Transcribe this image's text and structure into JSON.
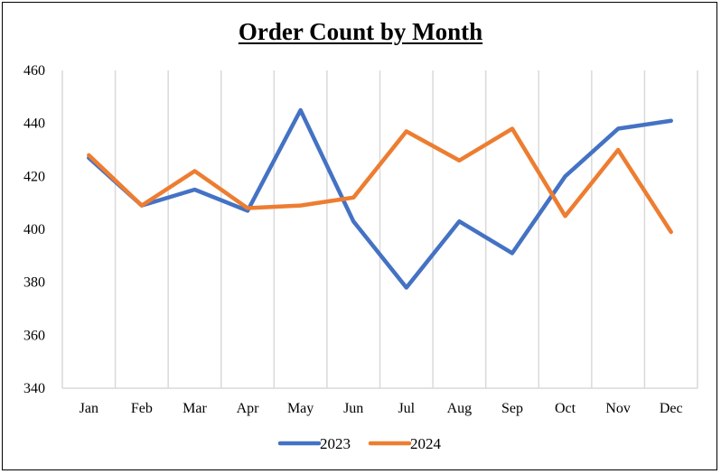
{
  "chart_data": {
    "type": "line",
    "title": "Order Count by Month",
    "categories": [
      "Jan",
      "Feb",
      "Mar",
      "Apr",
      "May",
      "Jun",
      "Jul",
      "Aug",
      "Sep",
      "Oct",
      "Nov",
      "Dec"
    ],
    "series": [
      {
        "name": "2023",
        "color": "#4472C4",
        "values": [
          427,
          409,
          415,
          407,
          445,
          403,
          378,
          403,
          391,
          420,
          438,
          441
        ]
      },
      {
        "name": "2024",
        "color": "#ED7D31",
        "values": [
          428,
          409,
          422,
          408,
          409,
          412,
          437,
          426,
          438,
          405,
          430,
          399
        ]
      }
    ],
    "ylim": [
      340,
      460
    ],
    "yticks": [
      340,
      360,
      380,
      400,
      420,
      440,
      460
    ],
    "xlabel": "",
    "ylabel": "",
    "grid": "vertical",
    "legend": "bottom"
  }
}
